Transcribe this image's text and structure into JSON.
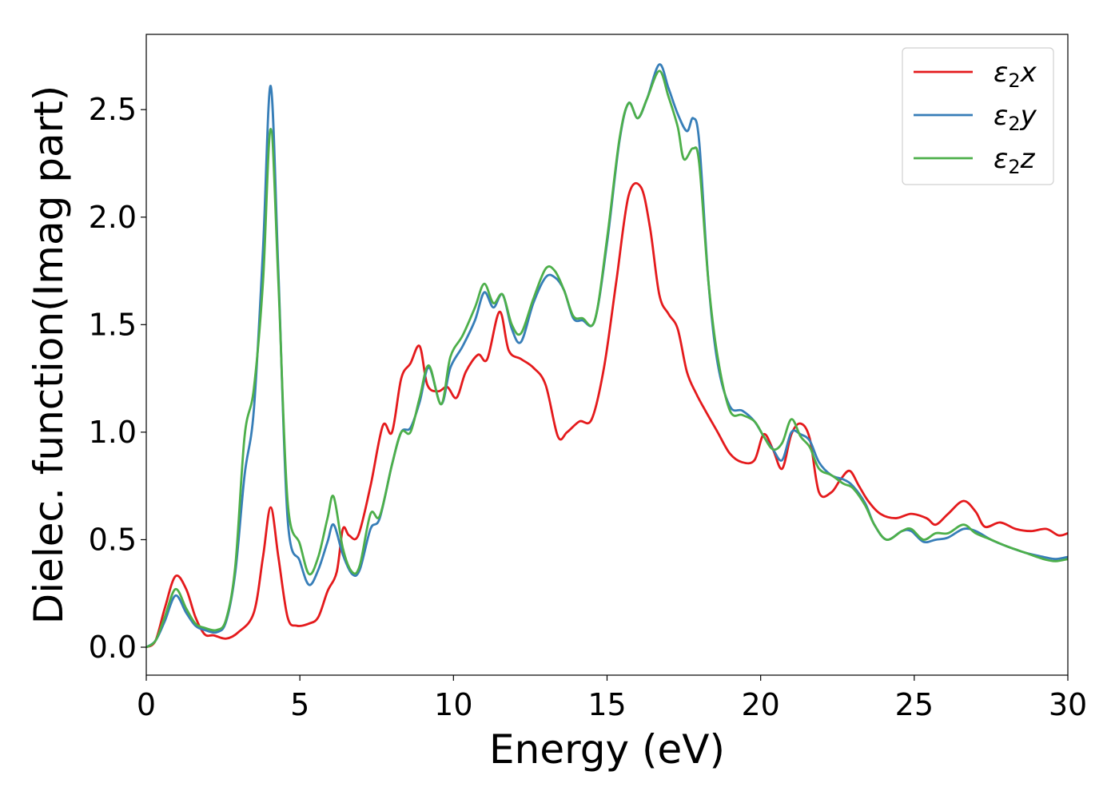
{
  "chart_data": {
    "type": "line",
    "title": "",
    "xlabel": "Energy (eV)",
    "ylabel": "Dielec. function(Imag part)",
    "xlim": [
      0,
      30
    ],
    "ylim": [
      -0.13,
      2.85
    ],
    "xticks": [
      0,
      5,
      10,
      15,
      20,
      25,
      30
    ],
    "xtick_labels": [
      "0",
      "5",
      "10",
      "15",
      "20",
      "25",
      "30"
    ],
    "yticks": [
      0.0,
      0.5,
      1.0,
      1.5,
      2.0,
      2.5
    ],
    "ytick_labels": [
      "0.0",
      "0.5",
      "1.0",
      "1.5",
      "2.0",
      "2.5"
    ],
    "grid": false,
    "legend_position": "top-right",
    "series": [
      {
        "name": "ε2x",
        "legend_sub": "2",
        "legend_sym": "ε",
        "legend_axis": "x",
        "color": "#e41a1c",
        "points": [
          [
            0,
            0
          ],
          [
            0.3,
            0.03
          ],
          [
            0.6,
            0.18
          ],
          [
            0.95,
            0.33
          ],
          [
            1.3,
            0.27
          ],
          [
            1.6,
            0.14
          ],
          [
            1.9,
            0.06
          ],
          [
            2.2,
            0.055
          ],
          [
            2.6,
            0.04
          ],
          [
            3.0,
            0.07
          ],
          [
            3.5,
            0.16
          ],
          [
            3.8,
            0.42
          ],
          [
            4.05,
            0.65
          ],
          [
            4.3,
            0.42
          ],
          [
            4.6,
            0.14
          ],
          [
            4.9,
            0.1
          ],
          [
            5.3,
            0.11
          ],
          [
            5.6,
            0.14
          ],
          [
            5.9,
            0.26
          ],
          [
            6.2,
            0.35
          ],
          [
            6.4,
            0.55
          ],
          [
            6.6,
            0.52
          ],
          [
            6.9,
            0.52
          ],
          [
            7.3,
            0.75
          ],
          [
            7.7,
            1.03
          ],
          [
            8.0,
            1.0
          ],
          [
            8.3,
            1.25
          ],
          [
            8.6,
            1.32
          ],
          [
            8.9,
            1.4
          ],
          [
            9.15,
            1.22
          ],
          [
            9.5,
            1.19
          ],
          [
            9.8,
            1.21
          ],
          [
            10.1,
            1.16
          ],
          [
            10.4,
            1.28
          ],
          [
            10.8,
            1.36
          ],
          [
            11.1,
            1.34
          ],
          [
            11.5,
            1.56
          ],
          [
            11.8,
            1.38
          ],
          [
            12.2,
            1.34
          ],
          [
            12.6,
            1.3
          ],
          [
            13.0,
            1.22
          ],
          [
            13.4,
            0.98
          ],
          [
            13.7,
            1.0
          ],
          [
            14.1,
            1.05
          ],
          [
            14.5,
            1.06
          ],
          [
            14.9,
            1.3
          ],
          [
            15.3,
            1.7
          ],
          [
            15.7,
            2.1
          ],
          [
            16.1,
            2.14
          ],
          [
            16.4,
            1.95
          ],
          [
            16.7,
            1.64
          ],
          [
            17.0,
            1.55
          ],
          [
            17.3,
            1.48
          ],
          [
            17.6,
            1.28
          ],
          [
            17.9,
            1.18
          ],
          [
            18.2,
            1.1
          ],
          [
            18.6,
            1.0
          ],
          [
            19.0,
            0.9
          ],
          [
            19.4,
            0.86
          ],
          [
            19.8,
            0.87
          ],
          [
            20.1,
            0.99
          ],
          [
            20.4,
            0.92
          ],
          [
            20.7,
            0.83
          ],
          [
            21.0,
            0.99
          ],
          [
            21.3,
            1.04
          ],
          [
            21.6,
            0.97
          ],
          [
            21.9,
            0.72
          ],
          [
            22.3,
            0.72
          ],
          [
            22.6,
            0.78
          ],
          [
            22.9,
            0.82
          ],
          [
            23.2,
            0.75
          ],
          [
            23.5,
            0.68
          ],
          [
            23.9,
            0.62
          ],
          [
            24.4,
            0.6
          ],
          [
            24.9,
            0.62
          ],
          [
            25.4,
            0.6
          ],
          [
            25.7,
            0.57
          ],
          [
            26.1,
            0.62
          ],
          [
            26.6,
            0.68
          ],
          [
            27.0,
            0.63
          ],
          [
            27.3,
            0.56
          ],
          [
            27.8,
            0.58
          ],
          [
            28.3,
            0.55
          ],
          [
            28.8,
            0.54
          ],
          [
            29.3,
            0.55
          ],
          [
            29.7,
            0.52
          ],
          [
            30,
            0.53
          ]
        ]
      },
      {
        "name": "ε2y",
        "legend_sub": "2",
        "legend_sym": "ε",
        "legend_axis": "y",
        "color": "#377eb8",
        "points": [
          [
            0,
            0
          ],
          [
            0.3,
            0.03
          ],
          [
            0.6,
            0.12
          ],
          [
            0.95,
            0.24
          ],
          [
            1.3,
            0.16
          ],
          [
            1.6,
            0.1
          ],
          [
            1.9,
            0.08
          ],
          [
            2.3,
            0.07
          ],
          [
            2.6,
            0.12
          ],
          [
            2.9,
            0.35
          ],
          [
            3.2,
            0.8
          ],
          [
            3.5,
            1.1
          ],
          [
            3.8,
            1.85
          ],
          [
            4.05,
            2.61
          ],
          [
            4.3,
            1.75
          ],
          [
            4.6,
            0.6
          ],
          [
            5.0,
            0.4
          ],
          [
            5.3,
            0.29
          ],
          [
            5.6,
            0.36
          ],
          [
            5.9,
            0.49
          ],
          [
            6.1,
            0.57
          ],
          [
            6.4,
            0.43
          ],
          [
            6.7,
            0.34
          ],
          [
            6.95,
            0.36
          ],
          [
            7.3,
            0.55
          ],
          [
            7.6,
            0.6
          ],
          [
            8.0,
            0.85
          ],
          [
            8.3,
            1.0
          ],
          [
            8.6,
            1.02
          ],
          [
            8.9,
            1.14
          ],
          [
            9.2,
            1.3
          ],
          [
            9.6,
            1.13
          ],
          [
            9.9,
            1.3
          ],
          [
            10.3,
            1.4
          ],
          [
            10.7,
            1.52
          ],
          [
            11.0,
            1.65
          ],
          [
            11.3,
            1.58
          ],
          [
            11.6,
            1.64
          ],
          [
            11.9,
            1.48
          ],
          [
            12.2,
            1.42
          ],
          [
            12.6,
            1.6
          ],
          [
            13.0,
            1.72
          ],
          [
            13.3,
            1.72
          ],
          [
            13.6,
            1.66
          ],
          [
            13.9,
            1.53
          ],
          [
            14.2,
            1.52
          ],
          [
            14.6,
            1.52
          ],
          [
            15.0,
            1.88
          ],
          [
            15.4,
            2.35
          ],
          [
            15.7,
            2.53
          ],
          [
            16.0,
            2.46
          ],
          [
            16.3,
            2.55
          ],
          [
            16.7,
            2.71
          ],
          [
            17.0,
            2.6
          ],
          [
            17.3,
            2.48
          ],
          [
            17.6,
            2.4
          ],
          [
            17.8,
            2.46
          ],
          [
            18.0,
            2.35
          ],
          [
            18.3,
            1.7
          ],
          [
            18.6,
            1.32
          ],
          [
            19.0,
            1.12
          ],
          [
            19.4,
            1.1
          ],
          [
            19.8,
            1.05
          ],
          [
            20.1,
            0.98
          ],
          [
            20.4,
            0.92
          ],
          [
            20.7,
            0.87
          ],
          [
            21.0,
            1.0
          ],
          [
            21.3,
            0.99
          ],
          [
            21.6,
            0.96
          ],
          [
            21.9,
            0.86
          ],
          [
            22.3,
            0.8
          ],
          [
            22.7,
            0.78
          ],
          [
            23.0,
            0.75
          ],
          [
            23.4,
            0.67
          ],
          [
            23.7,
            0.57
          ],
          [
            24.1,
            0.5
          ],
          [
            24.6,
            0.54
          ],
          [
            24.9,
            0.54
          ],
          [
            25.3,
            0.49
          ],
          [
            25.7,
            0.5
          ],
          [
            26.1,
            0.51
          ],
          [
            26.6,
            0.55
          ],
          [
            27.0,
            0.54
          ],
          [
            27.5,
            0.5
          ],
          [
            28.0,
            0.47
          ],
          [
            28.6,
            0.44
          ],
          [
            29.2,
            0.42
          ],
          [
            29.6,
            0.41
          ],
          [
            30,
            0.42
          ]
        ]
      },
      {
        "name": "ε2z",
        "legend_sub": "2",
        "legend_sym": "ε",
        "legend_axis": "z",
        "color": "#4daf4a",
        "points": [
          [
            0,
            0
          ],
          [
            0.3,
            0.03
          ],
          [
            0.6,
            0.14
          ],
          [
            0.95,
            0.27
          ],
          [
            1.3,
            0.18
          ],
          [
            1.6,
            0.11
          ],
          [
            1.9,
            0.09
          ],
          [
            2.3,
            0.08
          ],
          [
            2.6,
            0.13
          ],
          [
            2.9,
            0.38
          ],
          [
            3.2,
            0.98
          ],
          [
            3.5,
            1.2
          ],
          [
            3.8,
            1.7
          ],
          [
            4.05,
            2.41
          ],
          [
            4.3,
            1.7
          ],
          [
            4.6,
            0.68
          ],
          [
            5.0,
            0.48
          ],
          [
            5.3,
            0.34
          ],
          [
            5.6,
            0.42
          ],
          [
            5.9,
            0.6
          ],
          [
            6.1,
            0.7
          ],
          [
            6.4,
            0.46
          ],
          [
            6.7,
            0.35
          ],
          [
            6.95,
            0.38
          ],
          [
            7.3,
            0.62
          ],
          [
            7.6,
            0.61
          ],
          [
            8.0,
            0.85
          ],
          [
            8.3,
            1.0
          ],
          [
            8.6,
            1.0
          ],
          [
            8.9,
            1.16
          ],
          [
            9.2,
            1.31
          ],
          [
            9.6,
            1.13
          ],
          [
            9.9,
            1.35
          ],
          [
            10.3,
            1.45
          ],
          [
            10.7,
            1.58
          ],
          [
            11.0,
            1.69
          ],
          [
            11.3,
            1.6
          ],
          [
            11.6,
            1.64
          ],
          [
            11.9,
            1.5
          ],
          [
            12.2,
            1.46
          ],
          [
            12.6,
            1.62
          ],
          [
            13.0,
            1.76
          ],
          [
            13.3,
            1.75
          ],
          [
            13.6,
            1.66
          ],
          [
            13.9,
            1.54
          ],
          [
            14.2,
            1.53
          ],
          [
            14.6,
            1.52
          ],
          [
            15.0,
            1.9
          ],
          [
            15.4,
            2.36
          ],
          [
            15.7,
            2.53
          ],
          [
            16.0,
            2.46
          ],
          [
            16.3,
            2.55
          ],
          [
            16.7,
            2.68
          ],
          [
            17.0,
            2.56
          ],
          [
            17.3,
            2.42
          ],
          [
            17.5,
            2.27
          ],
          [
            17.8,
            2.32
          ],
          [
            18.0,
            2.25
          ],
          [
            18.3,
            1.7
          ],
          [
            18.6,
            1.35
          ],
          [
            19.0,
            1.1
          ],
          [
            19.4,
            1.08
          ],
          [
            19.8,
            1.05
          ],
          [
            20.1,
            0.98
          ],
          [
            20.4,
            0.92
          ],
          [
            20.7,
            0.95
          ],
          [
            21.0,
            1.06
          ],
          [
            21.3,
            0.98
          ],
          [
            21.6,
            0.93
          ],
          [
            21.9,
            0.83
          ],
          [
            22.3,
            0.8
          ],
          [
            22.7,
            0.76
          ],
          [
            23.0,
            0.74
          ],
          [
            23.4,
            0.66
          ],
          [
            23.7,
            0.57
          ],
          [
            24.1,
            0.5
          ],
          [
            24.6,
            0.54
          ],
          [
            24.9,
            0.55
          ],
          [
            25.3,
            0.5
          ],
          [
            25.7,
            0.53
          ],
          [
            26.1,
            0.53
          ],
          [
            26.6,
            0.57
          ],
          [
            27.0,
            0.53
          ],
          [
            27.5,
            0.5
          ],
          [
            28.0,
            0.47
          ],
          [
            28.6,
            0.44
          ],
          [
            29.2,
            0.41
          ],
          [
            29.6,
            0.4
          ],
          [
            30,
            0.41
          ]
        ]
      }
    ]
  }
}
